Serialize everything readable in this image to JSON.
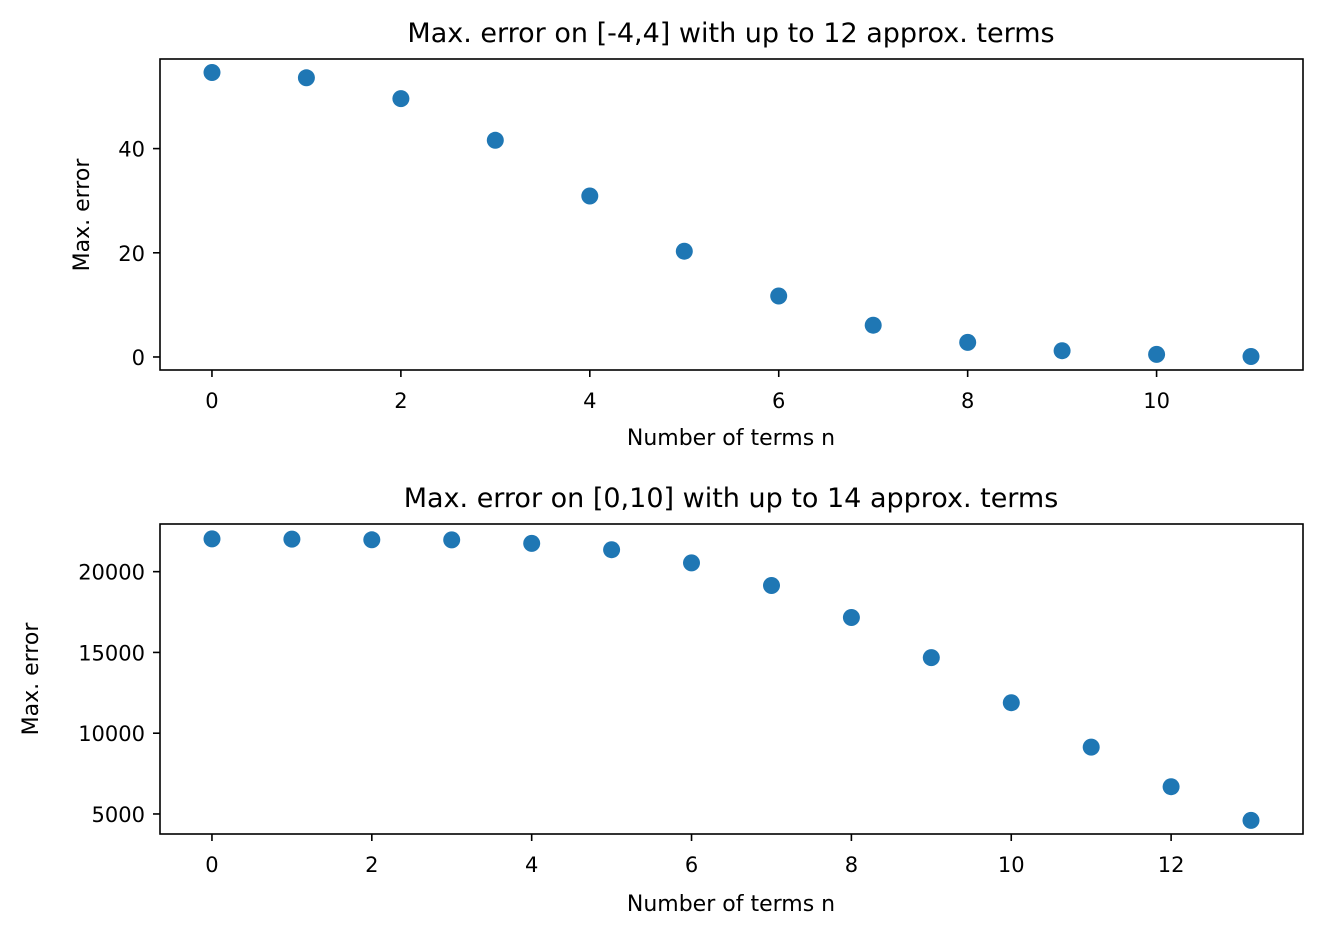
{
  "chart_data": [
    {
      "type": "scatter",
      "title": "Max. error on [-4,4] with up to 12 approx. terms",
      "xlabel": "Number of terms n",
      "ylabel": "Max. error",
      "xlim": [
        -0.55,
        11.55
      ],
      "ylim": [
        -2.5,
        57.2
      ],
      "xticks": [
        0,
        2,
        4,
        6,
        8,
        10
      ],
      "yticks": [
        0,
        20,
        40
      ],
      "grid": false,
      "marker_color": "#1f77b4",
      "x": [
        0,
        1,
        2,
        3,
        4,
        5,
        6,
        7,
        8,
        9,
        10,
        11
      ],
      "y": [
        54.6,
        53.6,
        49.6,
        41.6,
        30.9,
        20.3,
        11.7,
        6.1,
        2.8,
        1.2,
        0.5,
        0.1
      ]
    },
    {
      "type": "scatter",
      "title": "Max. error on [0,10] with up to 14 approx. terms",
      "xlabel": "Number of terms n",
      "ylabel": "Max. error",
      "xlim": [
        -0.65,
        13.65
      ],
      "ylim": [
        3760,
        22950
      ],
      "xticks": [
        0,
        2,
        4,
        6,
        8,
        10,
        12
      ],
      "yticks": [
        5000,
        10000,
        15000,
        20000
      ],
      "grid": false,
      "marker_color": "#1f77b4",
      "x": [
        0,
        1,
        2,
        3,
        4,
        5,
        6,
        7,
        8,
        9,
        10,
        11,
        12,
        13
      ],
      "y": [
        22025,
        22015,
        21975,
        21965,
        21750,
        21360,
        20540,
        19140,
        17160,
        14680,
        11890,
        9140,
        6690,
        4600
      ]
    }
  ]
}
